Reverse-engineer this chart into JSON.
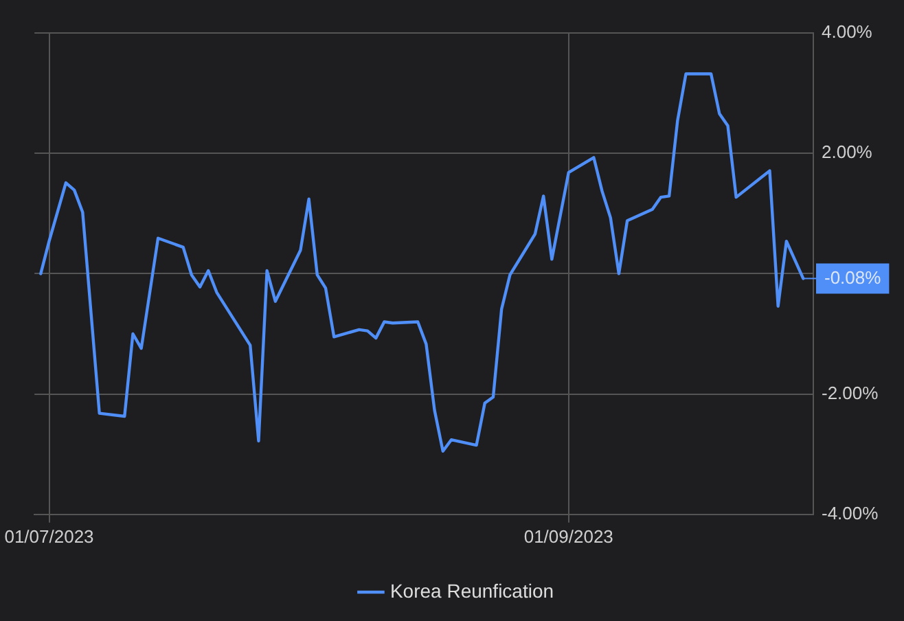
{
  "chart_data": {
    "type": "line",
    "xlabel": null,
    "legend": "bottom",
    "grid": true,
    "marker": "none",
    "line_style": "solid",
    "xlim": [
      "2023-06-29T06:00",
      "2023-09-30T05:00"
    ],
    "xticks": [
      {
        "value": "2023-07-01",
        "label": "01/07/2023"
      },
      {
        "value": "2023-09-01",
        "label": "01/09/2023"
      }
    ],
    "ylim": [
      -4,
      4
    ],
    "yticks": [
      {
        "value": -4,
        "label": "-4.00%"
      },
      {
        "value": -2,
        "label": "-2.00%"
      },
      {
        "value": 0,
        "label": null
      },
      {
        "value": 2,
        "label": "2.00%"
      },
      {
        "value": 4,
        "label": "4.00%"
      }
    ],
    "annotations": [
      {
        "text": "-0.08%",
        "x": "2023-09-29",
        "y": -0.08
      }
    ],
    "series": [
      {
        "name": "Korea Reunfication",
        "color": "#4f8ff7",
        "x": [
          "2023-06-30",
          "2023-07-01",
          "2023-07-03",
          "2023-07-04",
          "2023-07-05",
          "2023-07-07",
          "2023-07-10",
          "2023-07-11",
          "2023-07-12",
          "2023-07-14",
          "2023-07-17",
          "2023-07-18",
          "2023-07-19",
          "2023-07-20",
          "2023-07-21",
          "2023-07-25",
          "2023-07-26",
          "2023-07-27",
          "2023-07-28",
          "2023-07-31",
          "2023-08-01",
          "2023-08-02",
          "2023-08-03",
          "2023-08-04",
          "2023-08-07",
          "2023-08-08",
          "2023-08-09",
          "2023-08-10",
          "2023-08-11",
          "2023-08-14",
          "2023-08-15",
          "2023-08-16",
          "2023-08-17",
          "2023-08-18",
          "2023-08-21",
          "2023-08-22",
          "2023-08-23",
          "2023-08-24",
          "2023-08-25",
          "2023-08-28",
          "2023-08-29",
          "2023-08-30",
          "2023-09-01",
          "2023-09-04",
          "2023-09-05",
          "2023-09-06",
          "2023-09-07",
          "2023-09-08",
          "2023-09-11",
          "2023-09-12",
          "2023-09-13",
          "2023-09-14",
          "2023-09-15",
          "2023-09-18",
          "2023-09-19",
          "2023-09-20",
          "2023-09-21",
          "2023-09-25",
          "2023-09-26",
          "2023-09-27",
          "2023-09-29"
        ],
        "values": [
          0,
          0.54,
          1.51,
          1.39,
          1.02,
          -2.32,
          -2.37,
          -1.0,
          -1.24,
          0.59,
          0.44,
          -0.02,
          -0.22,
          0.05,
          -0.31,
          -1.19,
          -2.78,
          0.05,
          -0.46,
          0.39,
          1.24,
          -0.02,
          -0.24,
          -1.05,
          -0.93,
          -0.95,
          -1.07,
          -0.8,
          -0.82,
          -0.8,
          -1.17,
          -2.27,
          -2.95,
          -2.76,
          -2.85,
          -2.15,
          -2.05,
          -0.59,
          -0.02,
          0.66,
          1.29,
          0.24,
          1.68,
          1.93,
          1.37,
          0.93,
          0.0,
          0.88,
          1.07,
          1.27,
          1.29,
          2.54,
          3.32,
          3.32,
          2.66,
          2.46,
          1.27,
          1.71,
          -0.54,
          0.54,
          -0.08
        ]
      }
    ]
  }
}
